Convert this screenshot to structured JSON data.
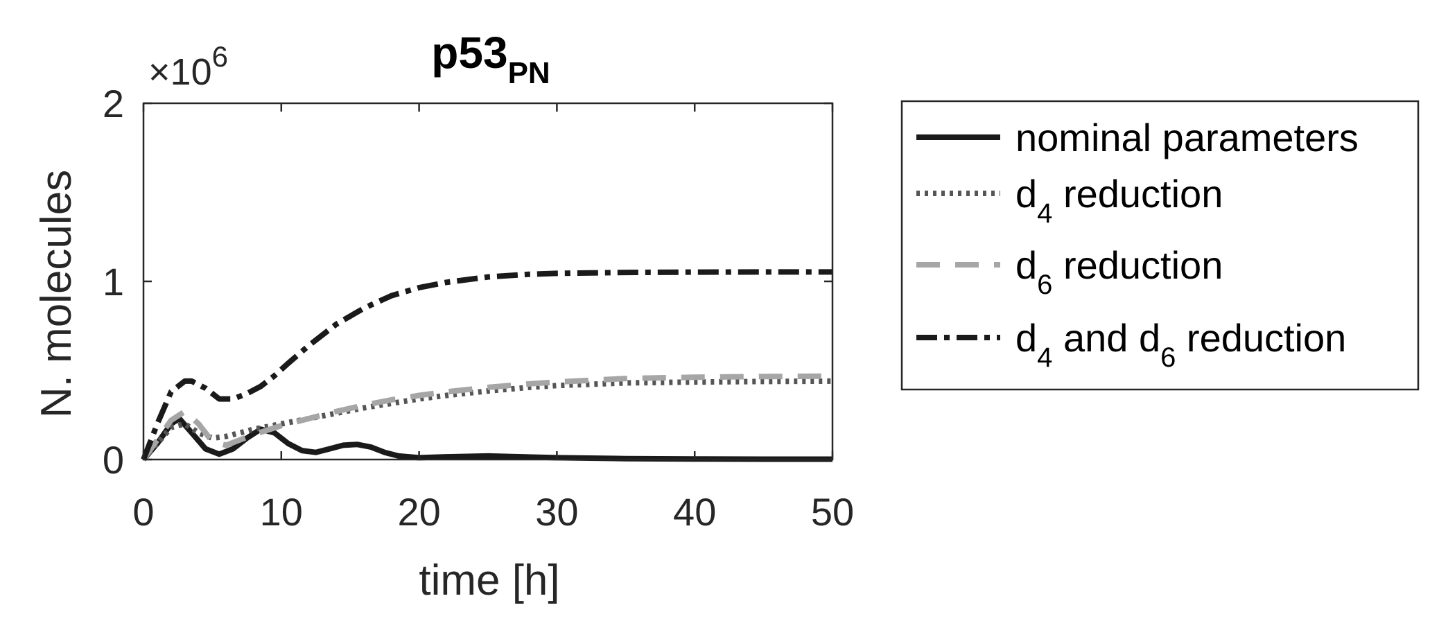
{
  "chart_data": {
    "type": "line",
    "title": "p53",
    "title_subscript": "PN",
    "xlabel": "time [h]",
    "ylabel": "N. molecules",
    "y_multiplier": "×10",
    "y_multiplier_exponent": "6",
    "xlim": [
      0,
      50
    ],
    "ylim": [
      0,
      2000000
    ],
    "xticks": [
      0,
      10,
      20,
      30,
      40,
      50
    ],
    "yticks": [
      0,
      1000000,
      2000000
    ],
    "ytick_labels": [
      "0",
      "1",
      "2"
    ],
    "grid": false,
    "legend_position": "outside-right",
    "series": [
      {
        "name_parts": [
          {
            "t": "nominal parameters"
          }
        ],
        "color": "#1a1a1a",
        "style": "solid",
        "x": [
          0,
          1,
          2,
          2.6,
          3.5,
          4.5,
          5.5,
          6.5,
          7.5,
          8.5,
          9.5,
          10.5,
          11.5,
          12.5,
          13.5,
          14.5,
          15.5,
          16.5,
          17.5,
          18.5,
          20,
          22,
          25,
          30,
          35,
          40,
          45,
          50
        ],
        "y": [
          0,
          90000,
          200000,
          230000,
          150000,
          60000,
          30000,
          60000,
          120000,
          170000,
          150000,
          90000,
          50000,
          40000,
          60000,
          80000,
          85000,
          70000,
          40000,
          20000,
          10000,
          15000,
          20000,
          10000,
          5000,
          3000,
          2000,
          2000
        ]
      },
      {
        "name_parts": [
          {
            "t": "d"
          },
          {
            "t": "4",
            "sub": true
          },
          {
            "t": " reduction"
          }
        ],
        "color": "#555555",
        "style": "dotted",
        "x": [
          0,
          1,
          2,
          3,
          4,
          5,
          6,
          7,
          8,
          9,
          10,
          12,
          14,
          16,
          18,
          20,
          22,
          25,
          28,
          30,
          35,
          40,
          45,
          50
        ],
        "y": [
          0,
          90000,
          180000,
          200000,
          150000,
          120000,
          130000,
          150000,
          170000,
          185000,
          200000,
          230000,
          260000,
          290000,
          315000,
          340000,
          360000,
          385000,
          405000,
          415000,
          430000,
          435000,
          438000,
          440000
        ]
      },
      {
        "name_parts": [
          {
            "t": "d"
          },
          {
            "t": "6",
            "sub": true
          },
          {
            "t": " reduction"
          }
        ],
        "color": "#a6a6a6",
        "style": "dashed",
        "x": [
          0,
          1,
          2,
          3,
          4,
          5,
          6,
          7,
          8,
          9,
          10,
          12,
          14,
          16,
          18,
          20,
          22,
          25,
          28,
          30,
          35,
          40,
          45,
          50
        ],
        "y": [
          0,
          110000,
          220000,
          270000,
          200000,
          100000,
          80000,
          110000,
          140000,
          165000,
          190000,
          230000,
          270000,
          305000,
          335000,
          360000,
          380000,
          405000,
          425000,
          435000,
          455000,
          462000,
          466000,
          468000
        ]
      },
      {
        "name_parts": [
          {
            "t": "d"
          },
          {
            "t": "4",
            "sub": true
          },
          {
            "t": " and d"
          },
          {
            "t": "6",
            "sub": true
          },
          {
            "t": " reduction"
          }
        ],
        "color": "#1a1a1a",
        "style": "dashdot",
        "x": [
          0,
          1,
          2,
          3,
          3.5,
          4.5,
          5.5,
          6.5,
          7.5,
          8.5,
          9.5,
          10.5,
          12,
          14,
          16,
          18,
          20,
          22,
          25,
          28,
          30,
          35,
          40,
          45,
          50
        ],
        "y": [
          0,
          200000,
          380000,
          440000,
          440000,
          400000,
          340000,
          340000,
          370000,
          410000,
          470000,
          540000,
          640000,
          760000,
          850000,
          920000,
          965000,
          995000,
          1025000,
          1040000,
          1045000,
          1050000,
          1052000,
          1053000,
          1053000
        ]
      }
    ]
  }
}
